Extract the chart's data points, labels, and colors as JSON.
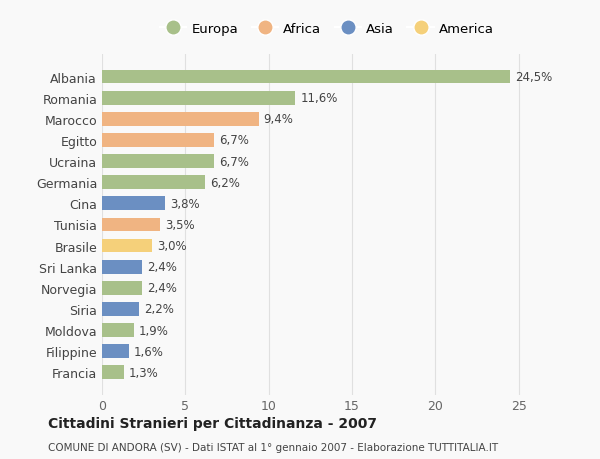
{
  "countries": [
    "Albania",
    "Romania",
    "Marocco",
    "Egitto",
    "Ucraina",
    "Germania",
    "Cina",
    "Tunisia",
    "Brasile",
    "Sri Lanka",
    "Norvegia",
    "Siria",
    "Moldova",
    "Filippine",
    "Francia"
  ],
  "values": [
    24.5,
    11.6,
    9.4,
    6.7,
    6.7,
    6.2,
    3.8,
    3.5,
    3.0,
    2.4,
    2.4,
    2.2,
    1.9,
    1.6,
    1.3
  ],
  "labels": [
    "24,5%",
    "11,6%",
    "9,4%",
    "6,7%",
    "6,7%",
    "6,2%",
    "3,8%",
    "3,5%",
    "3,0%",
    "2,4%",
    "2,4%",
    "2,2%",
    "1,9%",
    "1,6%",
    "1,3%"
  ],
  "continents": [
    "Europa",
    "Europa",
    "Africa",
    "Africa",
    "Europa",
    "Europa",
    "Asia",
    "Africa",
    "America",
    "Asia",
    "Europa",
    "Asia",
    "Europa",
    "Asia",
    "Europa"
  ],
  "colors": {
    "Europa": "#a8c08a",
    "Africa": "#f0b482",
    "Asia": "#6b8fc2",
    "America": "#f5d07a"
  },
  "legend_order": [
    "Europa",
    "Africa",
    "Asia",
    "America"
  ],
  "title": "Cittadini Stranieri per Cittadinanza - 2007",
  "subtitle": "COMUNE DI ANDORA (SV) - Dati ISTAT al 1° gennaio 2007 - Elaborazione TUTTITALIA.IT",
  "xlim": [
    0,
    27
  ],
  "xticks": [
    0,
    5,
    10,
    15,
    20,
    25
  ],
  "background_color": "#f9f9f9",
  "grid_color": "#e0e0e0"
}
